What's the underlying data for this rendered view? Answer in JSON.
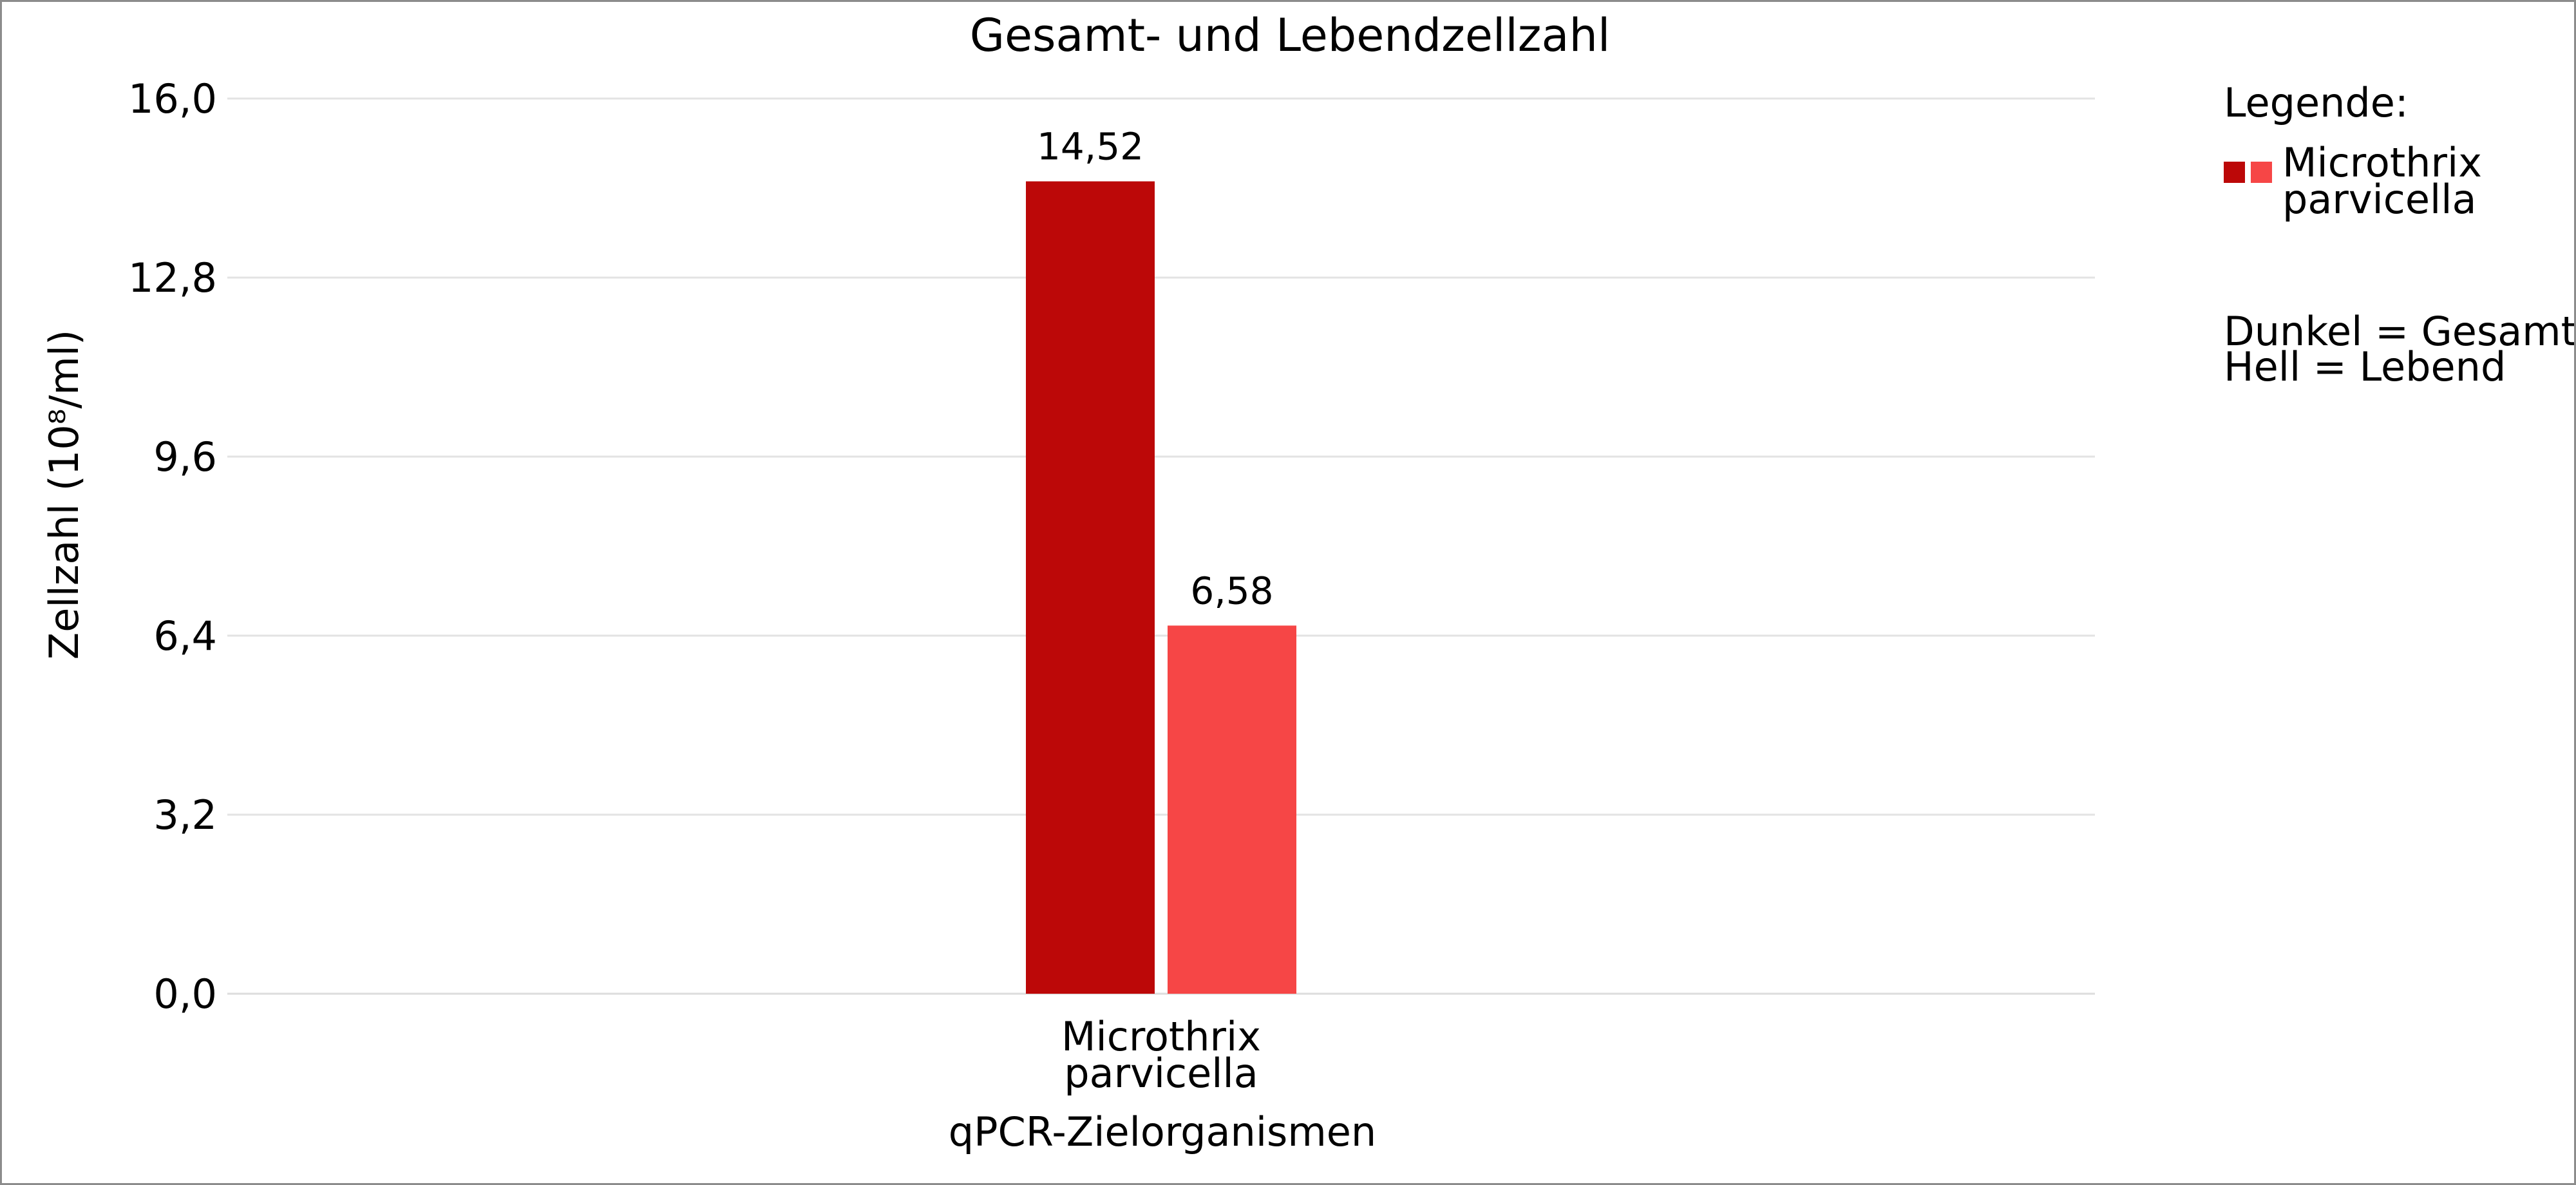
{
  "colors": {
    "total": "#BC0808",
    "live": "#F64646"
  },
  "chart_data": {
    "type": "bar",
    "title": "Gesamt- und Lebendzellzahl",
    "xlabel": "qPCR-Zielorganismen",
    "ylabel": "Zellzahl (10⁸/ml)",
    "ylim": [
      0,
      16
    ],
    "yticks": [
      "0,0",
      "3,2",
      "6,4",
      "9,6",
      "12,8",
      "16,0"
    ],
    "ytick_values": [
      0,
      3.2,
      6.4,
      9.6,
      12.8,
      16.0
    ],
    "grid": true,
    "legend_position": "right",
    "categories": [
      "Microthrix parvicella"
    ],
    "category_label_lines": [
      [
        "Microthrix",
        "parvicella"
      ]
    ],
    "series": [
      {
        "values": [
          14.52
        ],
        "labels": [
          "14,52"
        ],
        "color": "#BC0808"
      },
      {
        "values": [
          6.58
        ],
        "labels": [
          "6,58"
        ],
        "color": "#F64646"
      }
    ],
    "legend": {
      "heading": "Legende:",
      "entry_lines": [
        "Microthrix",
        "parvicella"
      ],
      "note_lines": [
        "Dunkel = Gesamt",
        "Hell = Lebend"
      ]
    }
  }
}
